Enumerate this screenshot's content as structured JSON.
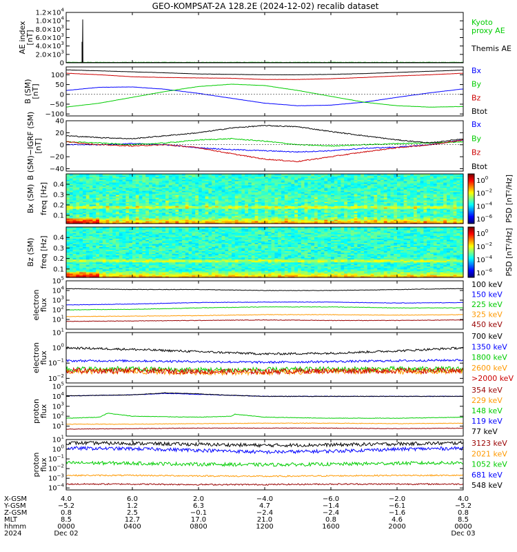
{
  "title": "GEO-KOMPSAT-2A 128.2E (2024-12-02) recalib dataset",
  "chart_data": [
    {
      "type": "line",
      "panel": "ae",
      "ylabel": "AE index [nT]",
      "ylim": [
        0,
        12000
      ],
      "yticks": [
        "0",
        "2.0×10³",
        "4.0×10³",
        "6.0×10³",
        "8.0×10³",
        "1.0×10⁴",
        "1.2×10⁴"
      ],
      "ytick_values": [
        0,
        2000,
        4000,
        6000,
        8000,
        10000,
        12000
      ],
      "series": [
        {
          "name": "Kyoto proxy AE",
          "color": "#00cc00",
          "label_lines": [
            "Kyoto",
            "proxy AE"
          ],
          "spike_hour": null,
          "baseline": 100
        },
        {
          "name": "Themis AE",
          "color": "#000000",
          "label_lines": [
            "Themis AE"
          ],
          "spike_hour": 1.0,
          "spike_value": 10300,
          "spike_pre": 5000,
          "baseline": 50
        }
      ]
    },
    {
      "type": "line",
      "panel": "bsm",
      "ylabel": "B (SM) [nT]",
      "ylim": [
        -110,
        140
      ],
      "yticks": [
        "−100",
        "−50",
        "0",
        "50",
        "100"
      ],
      "ytick_values": [
        -100,
        -50,
        0,
        50,
        100
      ],
      "series": [
        {
          "name": "Bx",
          "color": "#0000ff",
          "x": [
            0,
            2,
            4,
            6,
            8,
            10,
            12,
            14,
            16,
            18,
            20,
            22,
            24
          ],
          "y": [
            20,
            36,
            38,
            26,
            5,
            -20,
            -45,
            -58,
            -55,
            -40,
            -15,
            8,
            28
          ]
        },
        {
          "name": "By",
          "color": "#00cc00",
          "x": [
            0,
            2,
            4,
            6,
            8,
            10,
            12,
            14,
            16,
            18,
            20,
            22,
            24
          ],
          "y": [
            -65,
            -45,
            -15,
            15,
            40,
            52,
            45,
            20,
            -10,
            -40,
            -58,
            -65,
            -62
          ]
        },
        {
          "name": "Bz",
          "color": "#cc0000",
          "x": [
            0,
            2,
            4,
            6,
            8,
            10,
            12,
            14,
            16,
            18,
            20,
            22,
            24
          ],
          "y": [
            108,
            100,
            90,
            86,
            84,
            82,
            76,
            76,
            80,
            86,
            94,
            100,
            108
          ]
        },
        {
          "name": "Btot",
          "color": "#000000",
          "x": [
            0,
            2,
            4,
            6,
            8,
            10,
            12,
            14,
            16,
            18,
            20,
            22,
            24
          ],
          "y": [
            125,
            120,
            115,
            110,
            104,
            102,
            100,
            100,
            102,
            106,
            112,
            118,
            124
          ]
        }
      ]
    },
    {
      "type": "line",
      "panel": "bsm-igrf",
      "ylabel": "B (SM)-IGRF (SM) [nT]",
      "ylim": [
        -44,
        40
      ],
      "yticks": [
        "−40",
        "−20",
        "0",
        "20",
        "40"
      ],
      "ytick_values": [
        -40,
        -20,
        0,
        20,
        40
      ],
      "series": [
        {
          "name": "Bx",
          "color": "#0000ff",
          "x": [
            0,
            2,
            4,
            6,
            8,
            10,
            12,
            14,
            16,
            18,
            20,
            22,
            24
          ],
          "y": [
            0,
            0,
            2,
            0,
            -5,
            -8,
            -10,
            -12,
            -10,
            -6,
            -4,
            0,
            8
          ]
        },
        {
          "name": "By",
          "color": "#00cc00",
          "x": [
            0,
            2,
            4,
            6,
            8,
            10,
            12,
            14,
            16,
            18,
            20,
            22,
            24
          ],
          "y": [
            5,
            3,
            0,
            3,
            8,
            10,
            6,
            0,
            -2,
            0,
            2,
            3,
            5
          ]
        },
        {
          "name": "Bz",
          "color": "#cc0000",
          "x": [
            0,
            2,
            4,
            6,
            8,
            10,
            12,
            14,
            16,
            18,
            20,
            22,
            24
          ],
          "y": [
            5,
            0,
            -2,
            0,
            -5,
            -15,
            -24,
            -28,
            -20,
            -12,
            -5,
            0,
            8
          ]
        },
        {
          "name": "Btot",
          "color": "#000000",
          "x": [
            0,
            2,
            4,
            6,
            8,
            10,
            12,
            14,
            16,
            18,
            20,
            22,
            24
          ],
          "y": [
            15,
            12,
            10,
            15,
            20,
            28,
            32,
            30,
            22,
            15,
            8,
            3,
            10
          ]
        }
      ]
    },
    {
      "type": "heatmap",
      "panel": "bx-spec",
      "ylabel_main": "Bx (SM)",
      "ylabel_sub": "freq [Hz]",
      "ylim": [
        0.02,
        0.5
      ],
      "yticks": [
        "0.1",
        "0.2",
        "0.3",
        "0.4"
      ],
      "ytick_values": [
        0.1,
        0.2,
        0.3,
        0.4
      ],
      "line_freq": 0.175,
      "colorbar_label": "PSD [nT²/Hz]",
      "colorbar_ticks": [
        "10⁰",
        "10⁻²",
        "10⁻⁴",
        "10⁻⁶"
      ]
    },
    {
      "type": "heatmap",
      "panel": "bz-spec",
      "ylabel_main": "Bz (SM)",
      "ylabel_sub": "freq [Hz]",
      "ylim": [
        0.02,
        0.5
      ],
      "yticks": [
        "0.1",
        "0.2",
        "0.3",
        "0.4"
      ],
      "ytick_values": [
        0.1,
        0.2,
        0.3,
        0.4
      ],
      "line_freq": 0.175,
      "colorbar_label": "PSD [nT²/Hz]",
      "colorbar_ticks": [
        "10⁰",
        "10⁻²",
        "10⁻⁴",
        "10⁻⁶"
      ]
    },
    {
      "type": "line",
      "panel": "electron-low",
      "ylabel": "electron flux",
      "log": true,
      "ylim_log": [
        0,
        5
      ],
      "yticks": [
        "10¹",
        "10²",
        "10³",
        "10⁴",
        "10⁵"
      ],
      "ytick_values": [
        1,
        2,
        3,
        4,
        5
      ],
      "series": [
        {
          "name": "100 keV",
          "color": "#000000",
          "x": [
            0,
            4,
            8,
            12,
            16,
            20,
            24
          ],
          "y": [
            4.2,
            4.1,
            4.1,
            4.0,
            4.0,
            4.1,
            4.2
          ]
        },
        {
          "name": "150 keV",
          "color": "#0000ff",
          "x": [
            0,
            4,
            8,
            12,
            16,
            20,
            24
          ],
          "y": [
            2.5,
            2.6,
            2.75,
            2.8,
            2.8,
            2.7,
            2.75
          ]
        },
        {
          "name": "225 keV",
          "color": "#00cc00",
          "x": [
            0,
            4,
            8,
            12,
            16,
            20,
            24
          ],
          "y": [
            2.0,
            2.05,
            2.2,
            2.3,
            2.3,
            2.2,
            2.2
          ]
        },
        {
          "name": "325 keV",
          "color": "#ff9900",
          "x": [
            0,
            4,
            8,
            12,
            16,
            20,
            24
          ],
          "y": [
            1.3,
            1.35,
            1.4,
            1.5,
            1.5,
            1.45,
            1.5
          ]
        },
        {
          "name": "450 keV",
          "color": "#990000",
          "x": [
            0,
            4,
            8,
            12,
            16,
            20,
            24
          ],
          "y": [
            0.8,
            0.85,
            0.9,
            0.95,
            0.9,
            0.9,
            0.95
          ]
        }
      ]
    },
    {
      "type": "line",
      "panel": "electron-high",
      "ylabel": "electron flux",
      "log": true,
      "ylim_log": [
        -2.3,
        1
      ],
      "yticks": [
        "10⁻²",
        "10⁻¹",
        "10⁰",
        "10¹"
      ],
      "ytick_values": [
        -2,
        -1,
        0,
        1
      ],
      "series": [
        {
          "name": "700 keV",
          "color": "#000000",
          "x": [
            0,
            4,
            8,
            12,
            16,
            20,
            24
          ],
          "y": [
            0.0,
            -0.1,
            -0.25,
            -0.4,
            -0.35,
            -0.2,
            0.0
          ]
        },
        {
          "name": "1350 keV",
          "color": "#0000ff",
          "x": [
            0,
            4,
            8,
            12,
            16,
            20,
            24
          ],
          "y": [
            -0.85,
            -0.85,
            -0.9,
            -0.95,
            -0.9,
            -0.85,
            -0.8
          ]
        },
        {
          "name": "1800 keV",
          "color": "#00cc00",
          "x": [
            0,
            4,
            8,
            12,
            16,
            20,
            24
          ],
          "y": [
            -1.4,
            -1.4,
            -1.45,
            -1.45,
            -1.4,
            -1.4,
            -1.4
          ]
        },
        {
          "name": "2600 keV",
          "color": "#ff9900",
          "x": [
            0,
            4,
            8,
            12,
            16,
            20,
            24
          ],
          "y": [
            -1.55,
            -1.55,
            -1.6,
            -1.6,
            -1.55,
            -1.55,
            -1.55
          ]
        },
        {
          "name": ">2000 keV",
          "color": "#cc0000",
          "x": [
            0,
            4,
            8,
            12,
            16,
            20,
            24
          ],
          "y": [
            -1.5,
            -1.5,
            -1.55,
            -1.55,
            -1.5,
            -1.5,
            -1.5
          ]
        }
      ]
    },
    {
      "type": "line",
      "panel": "proton-low",
      "ylabel": "proton flux",
      "log": true,
      "ylim_log": [
        0,
        5
      ],
      "yticks": [
        "10¹",
        "10²",
        "10³",
        "10⁴",
        "10⁵"
      ],
      "ytick_values": [
        1,
        2,
        3,
        4,
        5
      ],
      "series": [
        {
          "name": "354 keV",
          "color": "#990000",
          "x": [
            0,
            4,
            8,
            12,
            16,
            20,
            24
          ],
          "y": [
            0.7,
            0.75,
            0.8,
            0.8,
            0.8,
            0.75,
            0.8
          ]
        },
        {
          "name": "229 keV",
          "color": "#ff9900",
          "x": [
            0,
            4,
            8,
            12,
            16,
            20,
            24
          ],
          "y": [
            1.2,
            1.2,
            1.25,
            1.3,
            1.3,
            1.25,
            1.3
          ]
        },
        {
          "name": "148 keV",
          "color": "#00cc00",
          "x": [
            0,
            2,
            2.5,
            4,
            8,
            10,
            10.2,
            12,
            16,
            20,
            24
          ],
          "y": [
            1.8,
            1.9,
            2.3,
            2.0,
            1.9,
            2.0,
            2.2,
            1.9,
            1.8,
            1.8,
            1.9
          ]
        },
        {
          "name": "119 keV",
          "color": "#0000ff",
          "x": [
            0,
            2,
            4,
            6,
            8,
            10,
            12,
            16,
            20,
            24
          ],
          "y": [
            4.05,
            4.1,
            4.15,
            4.3,
            4.2,
            4.1,
            4.0,
            4.0,
            4.0,
            4.0
          ]
        },
        {
          "name": "77 keV",
          "color": "#000000",
          "x": [
            0,
            2,
            4,
            6,
            8,
            10,
            12,
            16,
            20,
            24
          ],
          "y": [
            4.05,
            4.1,
            4.15,
            4.35,
            4.25,
            4.1,
            4.0,
            4.0,
            4.0,
            4.0
          ]
        }
      ]
    },
    {
      "type": "line",
      "panel": "proton-high",
      "ylabel": "proton flux",
      "log": true,
      "ylim_log": [
        -4.2,
        1
      ],
      "yticks": [
        "10⁻⁴",
        "10⁻³",
        "10⁻²",
        "10⁻¹",
        "10⁰",
        "10¹"
      ],
      "ytick_values": [
        -4,
        -3,
        -2,
        -1,
        0,
        1
      ],
      "series": [
        {
          "name": "3123 keV",
          "color": "#990000",
          "x": [
            0,
            4,
            8,
            12,
            16,
            20,
            24
          ],
          "y": [
            -3.6,
            -3.6,
            -3.65,
            -3.65,
            -3.6,
            -3.6,
            -3.6
          ]
        },
        {
          "name": "2021 keV",
          "color": "#ff9900",
          "x": [
            0,
            4,
            8,
            12,
            16,
            20,
            24
          ],
          "y": [
            -2.7,
            -2.7,
            -2.75,
            -2.8,
            -2.75,
            -2.7,
            -2.7
          ]
        },
        {
          "name": "1052 keV",
          "color": "#00cc00",
          "x": [
            0,
            4,
            8,
            12,
            16,
            20,
            24
          ],
          "y": [
            -1.4,
            -1.45,
            -1.55,
            -1.6,
            -1.55,
            -1.45,
            -1.4
          ]
        },
        {
          "name": "681 keV",
          "color": "#0000ff",
          "x": [
            0,
            4,
            8,
            12,
            16,
            20,
            24
          ],
          "y": [
            0.1,
            0.05,
            -0.1,
            -0.3,
            -0.2,
            0.0,
            0.1
          ]
        },
        {
          "name": "548 keV",
          "color": "#000000",
          "x": [
            0,
            4,
            8,
            12,
            16,
            20,
            24
          ],
          "y": [
            0.65,
            0.6,
            0.5,
            0.4,
            0.45,
            0.55,
            0.65
          ]
        }
      ]
    }
  ],
  "x_axis": {
    "xlim": [
      0,
      24
    ],
    "tick_hours": [
      0,
      4,
      8,
      12,
      16,
      20,
      24
    ],
    "rows": [
      {
        "label": "X-GSM",
        "values": [
          "4.0",
          "6.0",
          "2.0",
          "−4.0",
          "−6.0",
          "−2.0",
          "4.0"
        ]
      },
      {
        "label": "Y-GSM",
        "values": [
          "−5.2",
          "1.2",
          "6.3",
          "4.7",
          "−1.4",
          "−6.1",
          "−5.2"
        ]
      },
      {
        "label": "Z-GSM",
        "values": [
          "0.8",
          "2.5",
          "−0.1",
          "−2.4",
          "−2.4",
          "−1.6",
          "0.8"
        ]
      },
      {
        "label": "MLT",
        "values": [
          "8.5",
          "12.7",
          "17.0",
          "21.0",
          "0.8",
          "4.6",
          "8.5"
        ]
      },
      {
        "label": "hhmm",
        "values": [
          "0000",
          "0400",
          "0800",
          "1200",
          "1600",
          "2000",
          "0000"
        ]
      },
      {
        "label": "2024",
        "values": [
          "Dec 02",
          "",
          "",
          "",
          "",
          "",
          "Dec 03"
        ]
      }
    ]
  }
}
